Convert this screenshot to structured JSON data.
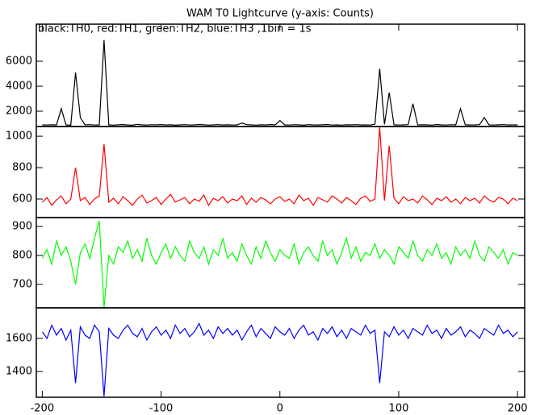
{
  "chart_data": {
    "type": "line",
    "title": "WAM T0 Lightcurve (y-axis: Counts)",
    "subtitle": "black:TH0, red:TH1, green:TH2, blue:TH3 ,1bin = 1s",
    "xlim": [
      -205,
      206
    ],
    "xticks": [
      -200,
      -100,
      0,
      100,
      200
    ],
    "x": [
      -200,
      -196,
      -192,
      -188,
      -184,
      -180,
      -176,
      -172,
      -168,
      -164,
      -160,
      -156,
      -152,
      -148,
      -144,
      -140,
      -136,
      -132,
      -128,
      -124,
      -120,
      -116,
      -112,
      -108,
      -104,
      -100,
      -96,
      -92,
      -88,
      -84,
      -80,
      -76,
      -72,
      -68,
      -64,
      -60,
      -56,
      -52,
      -48,
      -44,
      -40,
      -36,
      -32,
      -28,
      -24,
      -20,
      -16,
      -12,
      -8,
      -4,
      0,
      4,
      8,
      12,
      16,
      20,
      24,
      28,
      32,
      36,
      40,
      44,
      48,
      52,
      56,
      60,
      64,
      68,
      72,
      76,
      80,
      84,
      88,
      92,
      96,
      100,
      104,
      108,
      112,
      116,
      120,
      124,
      128,
      132,
      136,
      140,
      144,
      148,
      152,
      156,
      160,
      164,
      168,
      172,
      176,
      180,
      184,
      188,
      192,
      196,
      200
    ],
    "panels": [
      {
        "color": "#000000",
        "ylim": [
          774,
          8970
        ],
        "yticks": [
          2000,
          4000,
          6000
        ],
        "values": [
          900,
          890,
          910,
          895,
          2200,
          900,
          880,
          5100,
          1500,
          905,
          920,
          890,
          905,
          7700,
          900,
          885,
          910,
          930,
          895,
          880,
          950,
          905,
          890,
          915,
          900,
          930,
          895,
          910,
          880,
          905,
          920,
          890,
          900,
          935,
          910,
          885,
          900,
          925,
          895,
          910,
          890,
          905,
          1050,
          920,
          900,
          885,
          910,
          895,
          930,
          905,
          1250,
          900,
          890,
          915,
          905,
          880,
          920,
          900,
          895,
          910,
          930,
          890,
          905,
          885,
          910,
          900,
          920,
          895,
          905,
          890,
          960,
          5400,
          950,
          3500,
          910,
          890,
          905,
          920,
          2600,
          895,
          910,
          900,
          885,
          930,
          905,
          890,
          915,
          900,
          2200,
          910,
          895,
          905,
          920,
          1500,
          900,
          890,
          910,
          925,
          895,
          905,
          900
        ]
      },
      {
        "color": "#ff0000",
        "ylim": [
          482,
          1062
        ],
        "yticks": [
          600,
          800,
          1000
        ],
        "values": [
          580,
          610,
          560,
          595,
          620,
          570,
          600,
          800,
          590,
          610,
          565,
          600,
          620,
          950,
          580,
          605,
          570,
          615,
          590,
          560,
          600,
          625,
          575,
          590,
          610,
          565,
          600,
          630,
          580,
          595,
          610,
          570,
          600,
          585,
          625,
          560,
          605,
          590,
          615,
          575,
          600,
          590,
          620,
          565,
          605,
          580,
          610,
          595,
          570,
          600,
          615,
          585,
          600,
          570,
          625,
          590,
          605,
          560,
          610,
          595,
          580,
          620,
          600,
          575,
          610,
          590,
          565,
          605,
          620,
          585,
          600,
          1060,
          590,
          940,
          605,
          570,
          615,
          590,
          600,
          575,
          620,
          595,
          565,
          605,
          590,
          615,
          580,
          600,
          570,
          610,
          590,
          605,
          575,
          620,
          595,
          580,
          610,
          600,
          570,
          605,
          590
        ]
      },
      {
        "color": "#00ff00",
        "ylim": [
          619,
          931
        ],
        "yticks": [
          700,
          800,
          900
        ],
        "values": [
          790,
          820,
          770,
          850,
          800,
          830,
          780,
          700,
          810,
          840,
          790,
          860,
          920,
          620,
          800,
          770,
          830,
          810,
          850,
          790,
          820,
          780,
          860,
          800,
          770,
          810,
          840,
          790,
          830,
          800,
          780,
          850,
          810,
          790,
          830,
          770,
          820,
          800,
          860,
          790,
          810,
          780,
          840,
          800,
          770,
          830,
          790,
          850,
          810,
          780,
          820,
          800,
          790,
          840,
          770,
          810,
          830,
          800,
          780,
          850,
          800,
          820,
          770,
          810,
          860,
          790,
          830,
          780,
          810,
          800,
          840,
          790,
          820,
          800,
          770,
          830,
          810,
          790,
          850,
          800,
          780,
          820,
          800,
          840,
          790,
          810,
          770,
          830,
          800,
          820,
          790,
          850,
          800,
          780,
          830,
          810,
          790,
          820,
          770,
          810,
          800
        ]
      },
      {
        "color": "#0000ff",
        "ylim": [
          1244,
          1785
        ],
        "yticks": [
          1400,
          1600
        ],
        "values": [
          1640,
          1600,
          1680,
          1620,
          1660,
          1590,
          1650,
          1330,
          1670,
          1620,
          1600,
          1680,
          1640,
          1250,
          1660,
          1620,
          1600,
          1650,
          1680,
          1630,
          1610,
          1660,
          1590,
          1640,
          1670,
          1620,
          1650,
          1600,
          1680,
          1630,
          1660,
          1610,
          1640,
          1690,
          1620,
          1650,
          1600,
          1670,
          1630,
          1660,
          1620,
          1650,
          1590,
          1640,
          1680,
          1610,
          1660,
          1630,
          1600,
          1670,
          1640,
          1620,
          1660,
          1600,
          1650,
          1680,
          1620,
          1640,
          1590,
          1660,
          1630,
          1670,
          1610,
          1650,
          1600,
          1660,
          1640,
          1620,
          1680,
          1630,
          1650,
          1330,
          1640,
          1610,
          1670,
          1620,
          1650,
          1600,
          1660,
          1640,
          1620,
          1680,
          1630,
          1650,
          1600,
          1660,
          1620,
          1640,
          1670,
          1610,
          1650,
          1630,
          1600,
          1660,
          1640,
          1620,
          1680,
          1630,
          1650,
          1610,
          1640
        ]
      }
    ]
  }
}
